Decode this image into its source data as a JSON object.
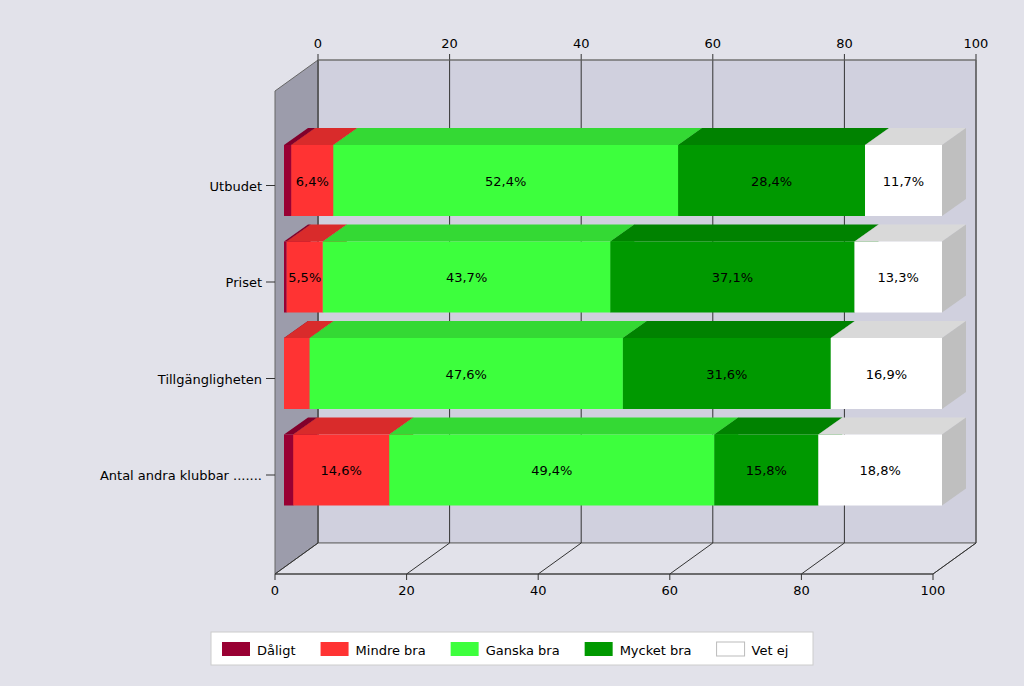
{
  "chart_data": {
    "type": "bar",
    "orientation": "horizontal",
    "stacked": true,
    "data_labels": true,
    "grid": true,
    "legend": "bottom",
    "categories": [
      "Utbudet",
      "Priset",
      "Tillgängligheten",
      "Antal andra klubbar ......."
    ],
    "xlim": [
      0,
      100
    ],
    "xticks": [
      0,
      20,
      40,
      60,
      80,
      100
    ],
    "series": [
      {
        "name": "Dåligt",
        "color": "#990033",
        "values": [
          1.1,
          0.4,
          0,
          1.4
        ],
        "value_labels": [
          null,
          null,
          null,
          null
        ]
      },
      {
        "name": "Mindre bra",
        "color": "#ff3333",
        "values": [
          6.4,
          5.5,
          3.9,
          14.6
        ],
        "value_labels": [
          "6,4%",
          "5,5%",
          null,
          "14,6%"
        ]
      },
      {
        "name": "Ganska bra",
        "color": "#3dff3d",
        "values": [
          52.4,
          43.7,
          47.6,
          49.4
        ],
        "value_labels": [
          "52,4%",
          "43,7%",
          "47,6%",
          "49,4%"
        ]
      },
      {
        "name": "Mycket bra",
        "color": "#009900",
        "values": [
          28.4,
          37.1,
          31.6,
          15.8
        ],
        "value_labels": [
          "28,4%",
          "37,1%",
          "31,6%",
          "15,8%"
        ]
      },
      {
        "name": "Vet ej",
        "color": "#ffffff",
        "values": [
          11.7,
          13.3,
          16.9,
          18.8
        ],
        "value_labels": [
          "11,7%",
          "13,3%",
          "16,9%",
          "18,8%"
        ]
      }
    ]
  }
}
